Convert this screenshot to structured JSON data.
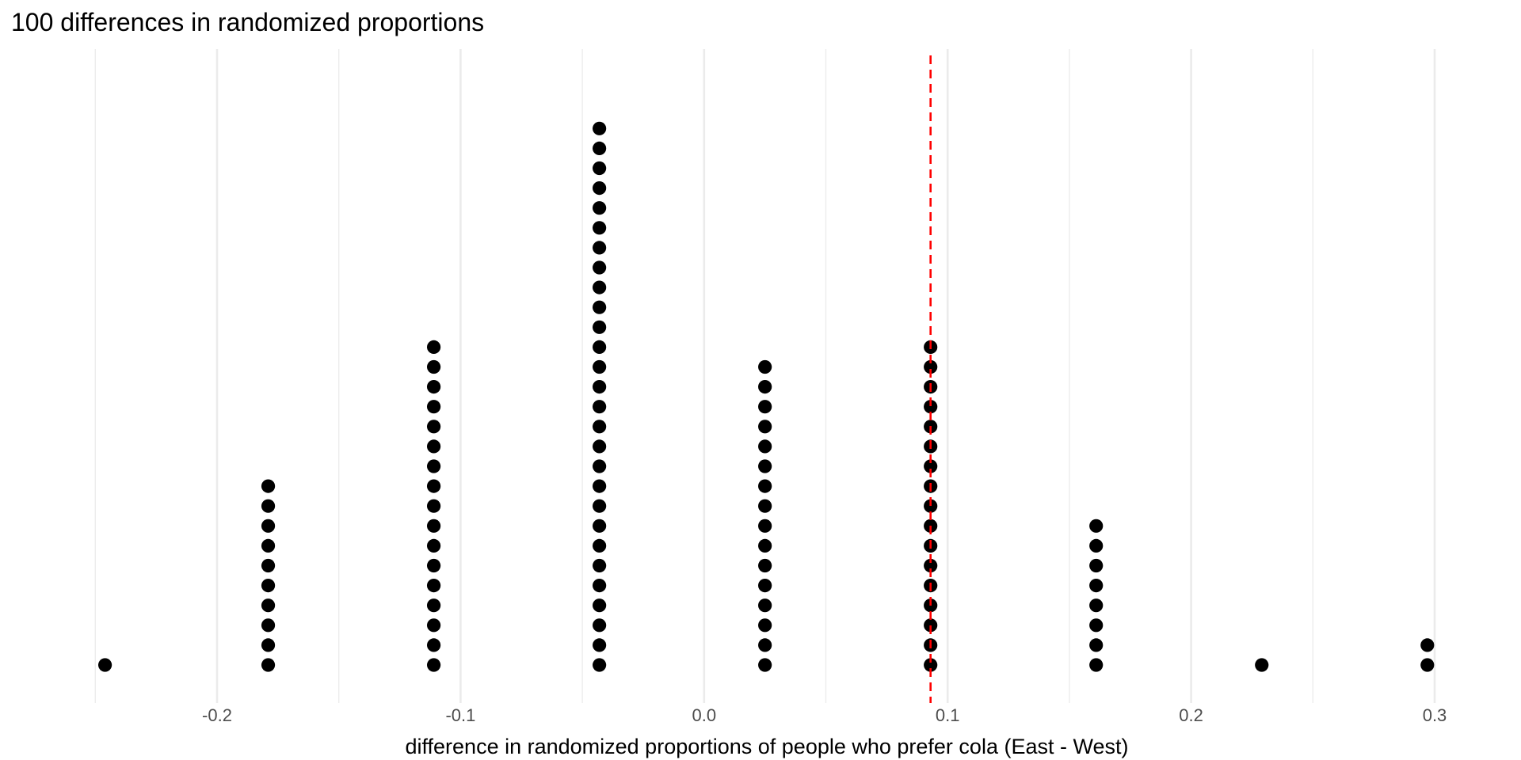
{
  "chart_data": {
    "type": "dotplot",
    "title": "100 differences in randomized proportions",
    "xlabel": "difference in randomized proportions of people who prefer cola (East - West)",
    "ylabel": "",
    "xlim": [
      -0.25,
      0.3
    ],
    "x_major_ticks": [
      -0.2,
      -0.1,
      0.0,
      0.1,
      0.2,
      0.3
    ],
    "x_tick_labels": [
      "-0.2",
      "-0.1",
      "0.0",
      "0.1",
      "0.2",
      "0.3"
    ],
    "x_minor_ticks": [
      -0.25,
      -0.15,
      -0.05,
      0.05,
      0.15,
      0.25
    ],
    "grid": true,
    "stacks": [
      {
        "x": -0.246,
        "count": 1
      },
      {
        "x": -0.179,
        "count": 10
      },
      {
        "x": -0.111,
        "count": 17
      },
      {
        "x": -0.043,
        "count": 28
      },
      {
        "x": 0.025,
        "count": 16
      },
      {
        "x": 0.093,
        "count": 17
      },
      {
        "x": 0.161,
        "count": 8
      },
      {
        "x": 0.229,
        "count": 1
      },
      {
        "x": 0.297,
        "count": 2
      }
    ],
    "observed_difference": 0.093,
    "reference_line_color": "#ff0000",
    "dot_color": "#000000",
    "grid_color": "#ebebeb"
  }
}
